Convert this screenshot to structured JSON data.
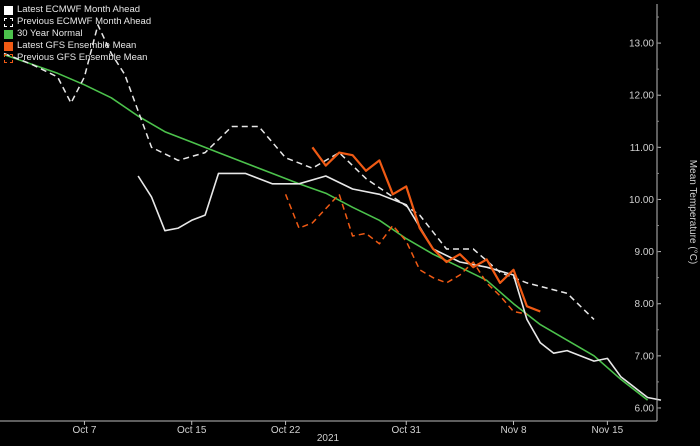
{
  "chart_data": {
    "type": "line",
    "title": "",
    "xlabel": "2021",
    "ylabel": "Mean Temperature (°C)",
    "ylim": [
      5.75,
      13.75
    ],
    "y_axis_side": "right",
    "y_ticks": [
      6.0,
      7.0,
      8.0,
      9.0,
      10.0,
      11.0,
      12.0,
      13.0
    ],
    "y_tick_labels": [
      "6.00",
      "7.00",
      "8.00",
      "9.00",
      "10.00",
      "11.00",
      "12.00",
      "13.00"
    ],
    "x_range": [
      "2021-10-01",
      "2021-11-19"
    ],
    "x_ticks": [
      "2021-10-07",
      "2021-10-15",
      "2021-10-22",
      "2021-10-31",
      "2021-11-08",
      "2021-11-15"
    ],
    "x_tick_labels": [
      "Oct 7",
      "Oct 15",
      "Oct 22",
      "Oct 31",
      "Nov 8",
      "Nov 15"
    ],
    "grid": false,
    "legend_position": "top-left",
    "series": [
      {
        "name": "30 Year Normal",
        "color": "#4cc24c",
        "style": "solid",
        "x": [
          "2021-10-01",
          "2021-10-03",
          "2021-10-05",
          "2021-10-07",
          "2021-10-09",
          "2021-10-11",
          "2021-10-13",
          "2021-10-15",
          "2021-10-17",
          "2021-10-19",
          "2021-10-21",
          "2021-10-23",
          "2021-10-25",
          "2021-10-27",
          "2021-10-29",
          "2021-10-31",
          "2021-11-02",
          "2021-11-04",
          "2021-11-06",
          "2021-11-08",
          "2021-11-10",
          "2021-11-12",
          "2021-11-14",
          "2021-11-16",
          "2021-11-18"
        ],
        "values": [
          12.78,
          12.6,
          12.42,
          12.2,
          11.95,
          11.6,
          11.3,
          11.1,
          10.9,
          10.7,
          10.5,
          10.3,
          10.12,
          9.85,
          9.6,
          9.25,
          8.95,
          8.7,
          8.45,
          8.0,
          7.6,
          7.3,
          7.0,
          6.55,
          6.15
        ]
      },
      {
        "name": "Latest ECMWF Month Ahead",
        "color": "#e8e8e8",
        "style": "solid",
        "x": [
          "2021-10-11",
          "2021-10-12",
          "2021-10-13",
          "2021-10-14",
          "2021-10-15",
          "2021-10-16",
          "2021-10-17",
          "2021-10-19",
          "2021-10-21",
          "2021-10-23",
          "2021-10-25",
          "2021-10-27",
          "2021-10-29",
          "2021-10-31",
          "2021-11-02",
          "2021-11-04",
          "2021-11-06",
          "2021-11-08",
          "2021-11-09",
          "2021-11-10",
          "2021-11-11",
          "2021-11-12",
          "2021-11-14",
          "2021-11-15",
          "2021-11-16",
          "2021-11-18",
          "2021-11-19"
        ],
        "values": [
          10.45,
          10.05,
          9.4,
          9.45,
          9.6,
          9.7,
          10.5,
          10.5,
          10.3,
          10.3,
          10.45,
          10.2,
          10.1,
          9.9,
          9.05,
          8.8,
          8.7,
          8.55,
          7.7,
          7.25,
          7.05,
          7.1,
          6.9,
          6.95,
          6.6,
          6.2,
          6.15
        ]
      },
      {
        "name": "Previous ECMWF Month Ahead",
        "color": "#e8e8e8",
        "style": "dashed",
        "x": [
          "2021-10-01",
          "2021-10-03",
          "2021-10-05",
          "2021-10-06",
          "2021-10-07",
          "2021-10-08",
          "2021-10-09",
          "2021-10-10",
          "2021-10-12",
          "2021-10-14",
          "2021-10-16",
          "2021-10-18",
          "2021-10-20",
          "2021-10-22",
          "2021-10-24",
          "2021-10-26",
          "2021-10-28",
          "2021-10-30",
          "2021-11-01",
          "2021-11-03",
          "2021-11-05",
          "2021-11-07",
          "2021-11-09",
          "2021-11-12",
          "2021-11-14"
        ],
        "values": [
          12.8,
          12.6,
          12.35,
          11.85,
          12.35,
          13.35,
          12.8,
          12.4,
          11.0,
          10.75,
          10.9,
          11.4,
          11.4,
          10.8,
          10.6,
          10.9,
          10.4,
          10.05,
          9.7,
          9.05,
          9.05,
          8.6,
          8.4,
          8.2,
          7.7
        ]
      },
      {
        "name": "Latest GFS Ensemble Mean",
        "color": "#f05a14",
        "style": "solid",
        "x": [
          "2021-10-24",
          "2021-10-25",
          "2021-10-26",
          "2021-10-27",
          "2021-10-28",
          "2021-10-29",
          "2021-10-30",
          "2021-10-31",
          "2021-11-01",
          "2021-11-02",
          "2021-11-03",
          "2021-11-04",
          "2021-11-05",
          "2021-11-06",
          "2021-11-07",
          "2021-11-08",
          "2021-11-09",
          "2021-11-10"
        ],
        "values": [
          11.0,
          10.65,
          10.9,
          10.85,
          10.55,
          10.75,
          10.1,
          10.25,
          9.45,
          9.05,
          8.8,
          8.95,
          8.7,
          8.85,
          8.4,
          8.65,
          7.95,
          7.85
        ]
      },
      {
        "name": "Previous GFS Ensemble Mean",
        "color": "#f05a14",
        "style": "dashed",
        "x": [
          "2021-10-22",
          "2021-10-23",
          "2021-10-24",
          "2021-10-26",
          "2021-10-27",
          "2021-10-28",
          "2021-10-29",
          "2021-10-30",
          "2021-10-31",
          "2021-11-01",
          "2021-11-02",
          "2021-11-03",
          "2021-11-04",
          "2021-11-05",
          "2021-11-06",
          "2021-11-07",
          "2021-11-08",
          "2021-11-09"
        ],
        "values": [
          10.1,
          9.45,
          9.55,
          10.1,
          9.3,
          9.35,
          9.15,
          9.5,
          9.2,
          8.65,
          8.5,
          8.4,
          8.55,
          8.8,
          8.4,
          8.15,
          7.85,
          7.8
        ]
      }
    ]
  },
  "legend": {
    "items": [
      {
        "label": "Latest ECMWF Month Ahead",
        "swatch_color": "#ffffff",
        "swatch_style": "solid"
      },
      {
        "label": "Previous ECMWF Month Ahead",
        "swatch_color": "#ffffff",
        "swatch_style": "dashed"
      },
      {
        "label": "30 Year Normal",
        "swatch_color": "#4cc24c",
        "swatch_style": "solid"
      },
      {
        "label": "Latest GFS Ensemble Mean",
        "swatch_color": "#f05a14",
        "swatch_style": "solid"
      },
      {
        "label": "Previous GFS Ensemble Mean",
        "swatch_color": "#f05a14",
        "swatch_style": "dashed"
      }
    ]
  }
}
